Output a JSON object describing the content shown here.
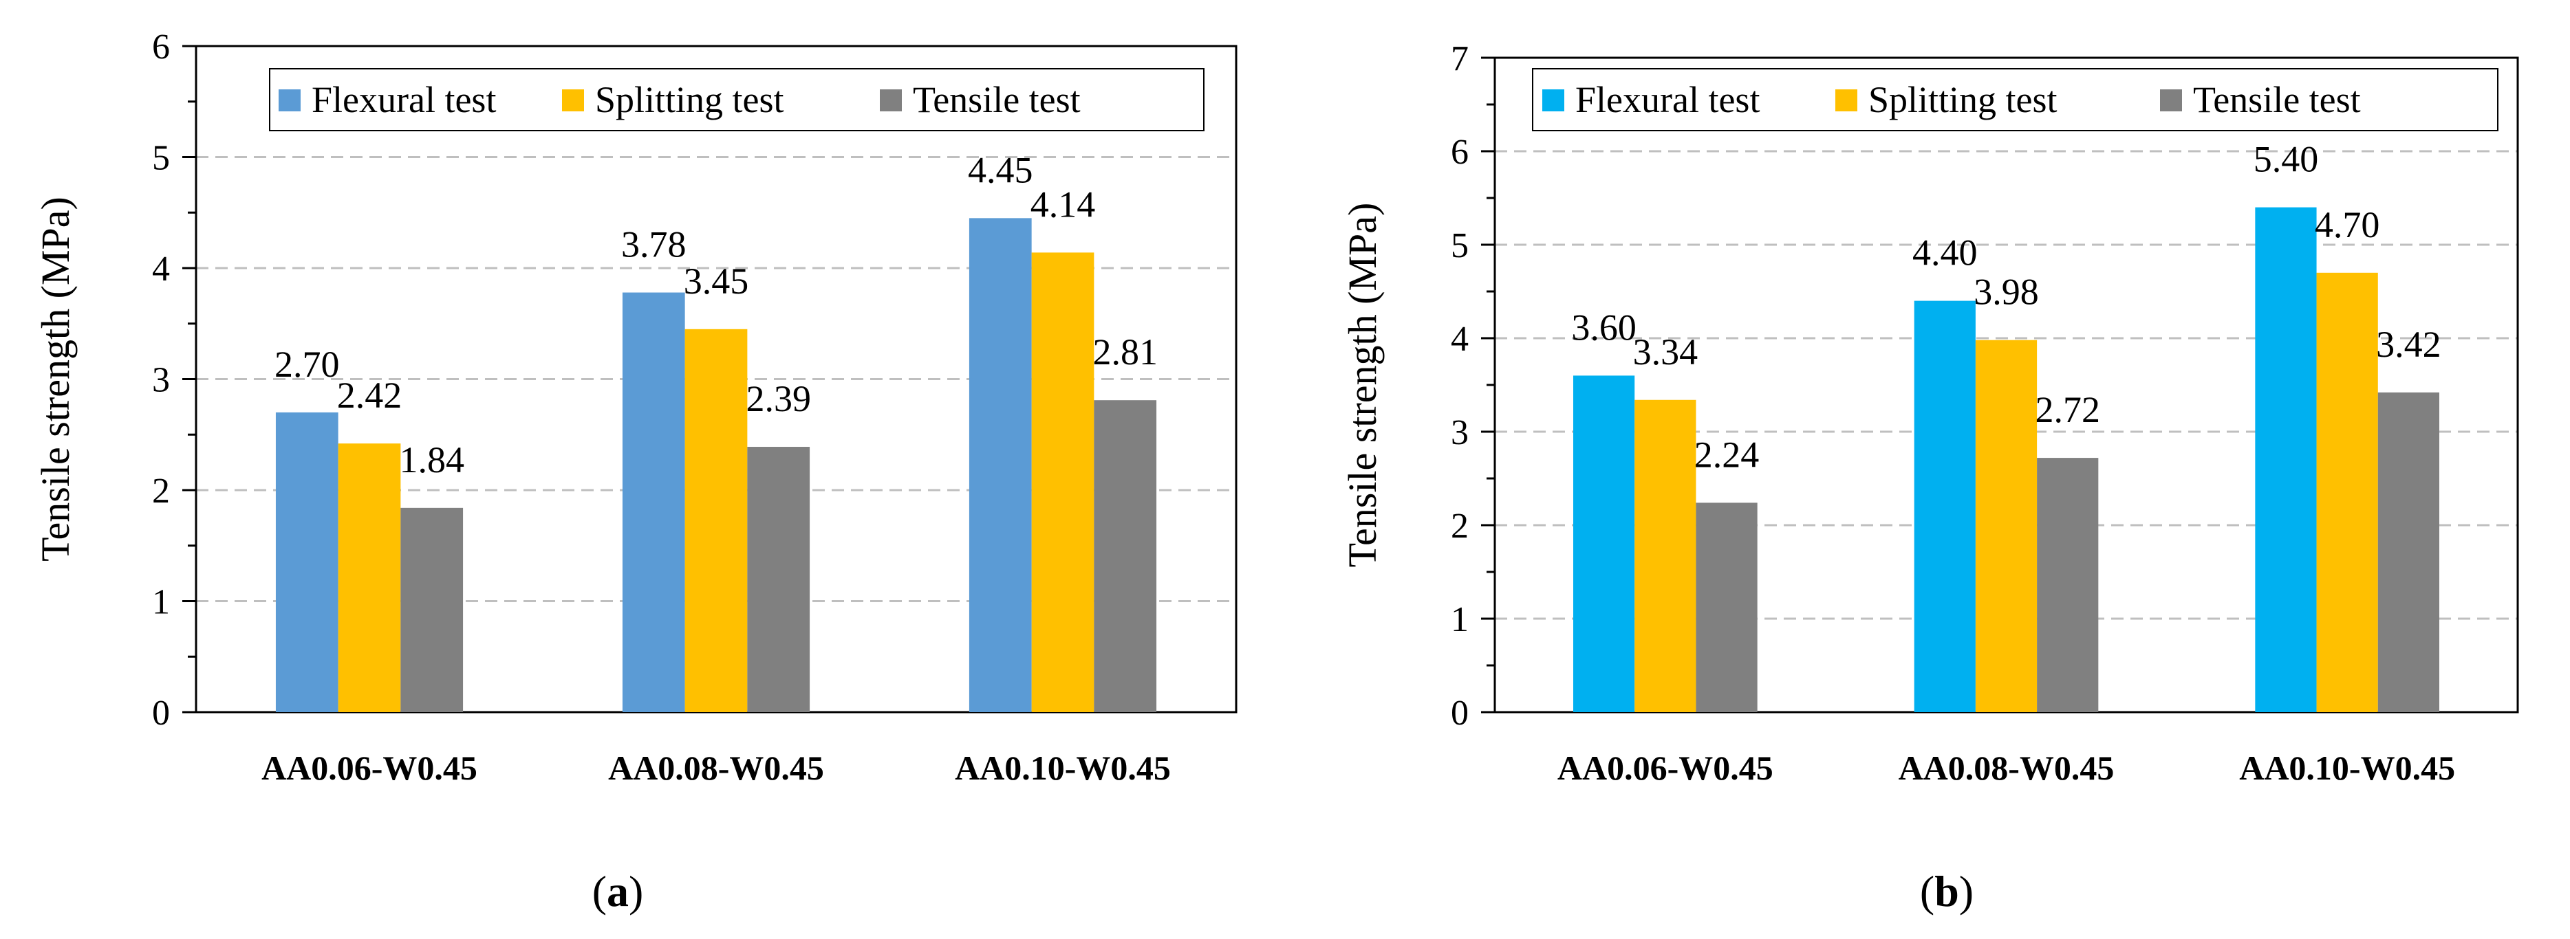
{
  "chart_data": [
    {
      "type": "bar",
      "panel": "a",
      "categories": [
        "AA0.06-W0.45",
        "AA0.08-W0.45",
        "AA0.10-W0.45"
      ],
      "series": [
        {
          "name": "Flexural test",
          "values": [
            2.7,
            3.78,
            4.45
          ],
          "labels": [
            "2.70",
            "3.78",
            "4.45"
          ],
          "color": "#5B9BD5"
        },
        {
          "name": "Splitting test",
          "values": [
            2.42,
            3.45,
            4.14
          ],
          "labels": [
            "2.42",
            "3.45",
            "4.14"
          ],
          "color": "#FFC000"
        },
        {
          "name": "Tensile test",
          "values": [
            1.84,
            2.39,
            2.81
          ],
          "labels": [
            "1.84",
            "2.39",
            "2.81"
          ],
          "color": "#808080"
        }
      ],
      "ylabel": "Tensile strength (MPa)",
      "xlabel": "",
      "ylim": [
        0,
        6
      ],
      "yticks": [
        "0",
        "1",
        "2",
        "3",
        "4",
        "5",
        "6"
      ],
      "grid": true,
      "legend": "top"
    },
    {
      "type": "bar",
      "panel": "b",
      "categories": [
        "AA0.06-W0.45",
        "AA0.08-W0.45",
        "AA0.10-W0.45"
      ],
      "series": [
        {
          "name": "Flexural test",
          "values": [
            3.6,
            4.4,
            5.4
          ],
          "labels": [
            "3.60",
            "4.40",
            "5.40"
          ],
          "color": "#00B0F0"
        },
        {
          "name": "Splitting test",
          "values": [
            3.34,
            3.98,
            4.7
          ],
          "labels": [
            "3.34",
            "3.98",
            "4.70"
          ],
          "color": "#FFC000"
        },
        {
          "name": "Tensile test",
          "values": [
            2.24,
            2.72,
            3.42
          ],
          "labels": [
            "2.24",
            "2.72",
            "3.42"
          ],
          "color": "#808080"
        }
      ],
      "ylabel": "Tensile strength (MPa)",
      "xlabel": "",
      "ylim": [
        0,
        7
      ],
      "yticks": [
        "0",
        "1",
        "2",
        "3",
        "4",
        "5",
        "6",
        "7"
      ],
      "grid": true,
      "legend": "top"
    }
  ],
  "panels": [
    {
      "label_open": "(",
      "label_letter": "a",
      "label_close": ")"
    },
    {
      "label_open": "(",
      "label_letter": "b",
      "label_close": ")"
    }
  ]
}
